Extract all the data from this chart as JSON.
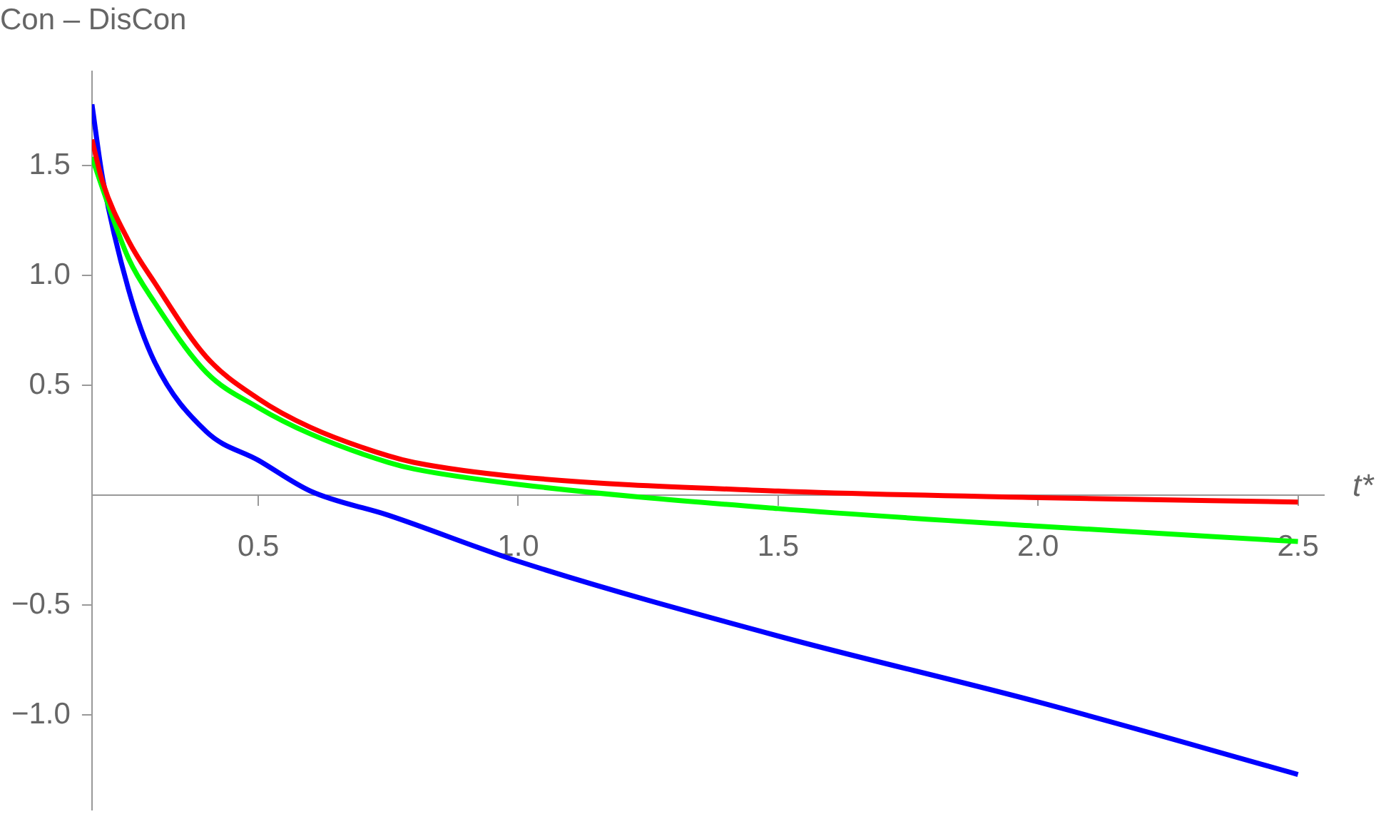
{
  "chart_data": {
    "type": "line",
    "ylabel": "Con – DisCon",
    "xlabel": "t*",
    "xlim": [
      0.18,
      2.55
    ],
    "ylim": [
      -1.43,
      1.93
    ],
    "xticks": [
      {
        "value": 0.5,
        "label": "0.5"
      },
      {
        "value": 1,
        "label": "1.0"
      },
      {
        "value": 1.5,
        "label": "1.5"
      },
      {
        "value": 2,
        "label": "2.0"
      },
      {
        "value": 2.5,
        "label": "2.5"
      }
    ],
    "yticks": [
      {
        "value": -1,
        "label": "−1.0"
      },
      {
        "value": -0.5,
        "label": "−0.5"
      },
      {
        "value": 0.5,
        "label": "0.5"
      },
      {
        "value": 1,
        "label": "1.0"
      },
      {
        "value": 1.5,
        "label": "1.5"
      }
    ],
    "grid": false,
    "legend": false,
    "marker": "none",
    "line_style": "solid",
    "series": [
      {
        "color": "#ff0000",
        "x": [
          0.18,
          0.2,
          0.25,
          0.3,
          0.4,
          0.5,
          0.6,
          0.75,
          0.8,
          1.0,
          1.5,
          2.0,
          2.5
        ],
        "values": [
          1.62,
          1.43,
          1.16,
          0.97,
          0.63,
          0.44,
          0.31,
          0.18,
          0.15,
          0.085,
          0.02,
          -0.01,
          -0.03
        ]
      },
      {
        "color": "#00ff00",
        "x": [
          0.18,
          0.2,
          0.25,
          0.3,
          0.4,
          0.5,
          0.6,
          0.75,
          0.8,
          1.0,
          1.5,
          2.0,
          2.5
        ],
        "values": [
          1.54,
          1.4,
          1.08,
          0.88,
          0.56,
          0.4,
          0.28,
          0.15,
          0.12,
          0.05,
          -0.06,
          -0.14,
          -0.21
        ]
      },
      {
        "color": "#0000ff",
        "x": [
          0.18,
          0.2,
          0.25,
          0.3,
          0.4,
          0.5,
          0.6,
          0.75,
          1.0,
          1.5,
          2.0,
          2.5
        ],
        "values": [
          1.78,
          1.45,
          0.94,
          0.61,
          0.29,
          0.16,
          0.02,
          -0.09,
          -0.3,
          -0.64,
          -0.94,
          -1.27
        ]
      }
    ]
  }
}
